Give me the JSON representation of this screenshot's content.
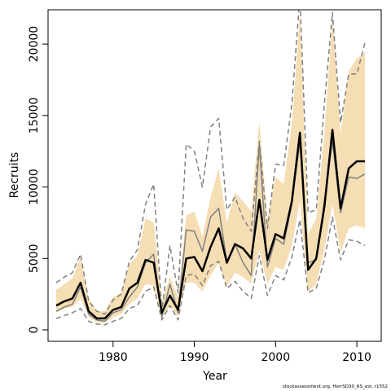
{
  "chart_data": {
    "type": "line",
    "xlabel": "Year",
    "ylabel": "Recruits",
    "footnote": "stockassessment.org, HerrSD30_RS_est, r1552",
    "xlim": [
      1972,
      2013
    ],
    "ylim": [
      -800,
      22400
    ],
    "xticks": [
      1980,
      1990,
      2000,
      2010
    ],
    "yticks": [
      0,
      5000,
      10000,
      15000,
      20000
    ],
    "x": [
      1973,
      1974,
      1975,
      1976,
      1977,
      1978,
      1979,
      1980,
      1981,
      1982,
      1983,
      1984,
      1985,
      1986,
      1987,
      1988,
      1989,
      1990,
      1991,
      1992,
      1993,
      1994,
      1995,
      1996,
      1997,
      1998,
      1999,
      2000,
      2001,
      2002,
      2003,
      2004,
      2005,
      2006,
      2007,
      2008,
      2009,
      2010,
      2011
    ],
    "series": [
      {
        "role": "estimate",
        "color": "#000000",
        "values": [
          1700,
          2000,
          2200,
          3300,
          1300,
          800,
          800,
          1400,
          1600,
          2900,
          3300,
          4900,
          4700,
          1200,
          2400,
          1400,
          5000,
          5100,
          4100,
          5800,
          7100,
          4700,
          6000,
          5700,
          5000,
          9100,
          4900,
          6700,
          6400,
          9000,
          13800,
          4200,
          5000,
          8600,
          14000,
          8500,
          11300,
          11800,
          11800
        ]
      },
      {
        "role": "alternate-estimate",
        "color": "#808080",
        "values": [
          1300,
          1600,
          1800,
          3000,
          1100,
          700,
          600,
          1200,
          1400,
          2300,
          3000,
          4700,
          5300,
          900,
          3200,
          1200,
          7000,
          6900,
          5500,
          7900,
          8500,
          4800,
          6000,
          4700,
          3800,
          13000,
          4400,
          6400,
          6000,
          8800,
          13200,
          4700,
          4900,
          9000,
          13200,
          8200,
          10700,
          10600,
          10900
        ]
      },
      {
        "role": "confidence-band-lower",
        "color": "#F5DEB3",
        "values": [
          1200,
          1500,
          1600,
          2200,
          900,
          500,
          500,
          900,
          1100,
          1800,
          2200,
          3200,
          3100,
          800,
          1700,
          900,
          3300,
          3300,
          2700,
          3800,
          4700,
          3100,
          4000,
          3700,
          3200,
          5600,
          3200,
          4400,
          4200,
          5900,
          9000,
          2700,
          3200,
          5600,
          8800,
          5400,
          7100,
          7300,
          7100
        ]
      },
      {
        "role": "confidence-band-upper",
        "color": "#F5DEB3",
        "values": [
          2800,
          3200,
          3600,
          5100,
          2200,
          1300,
          1300,
          2300,
          2600,
          4600,
          5200,
          7800,
          7500,
          2000,
          3700,
          2300,
          8000,
          8300,
          6500,
          9300,
          11300,
          7500,
          9600,
          9000,
          8300,
          14600,
          7700,
          10700,
          10200,
          14400,
          22200,
          6700,
          7800,
          13700,
          22000,
          13700,
          18100,
          19000,
          19400
        ]
      },
      {
        "role": "alternate-interval-lower",
        "color": "#808080",
        "values": [
          800,
          1000,
          1200,
          1500,
          600,
          400,
          350,
          600,
          800,
          1500,
          1700,
          2700,
          3000,
          700,
          1700,
          700,
          3800,
          3900,
          3100,
          4500,
          4800,
          2900,
          3400,
          2700,
          2200,
          5200,
          2400,
          3800,
          3500,
          5100,
          7700,
          2600,
          2900,
          4900,
          7900,
          4900,
          6300,
          6200,
          5900
        ]
      },
      {
        "role": "alternate-interval-upper",
        "color": "#808080",
        "values": [
          3300,
          3700,
          4000,
          5300,
          2000,
          1300,
          1100,
          2100,
          2500,
          4800,
          5600,
          8800,
          10200,
          1300,
          5900,
          2600,
          13000,
          12500,
          10000,
          14200,
          14800,
          8400,
          9300,
          7800,
          6900,
          13200,
          7100,
          11600,
          11500,
          15800,
          23400,
          8200,
          8400,
          15800,
          22200,
          14500,
          17900,
          17900,
          20100
        ]
      }
    ]
  }
}
